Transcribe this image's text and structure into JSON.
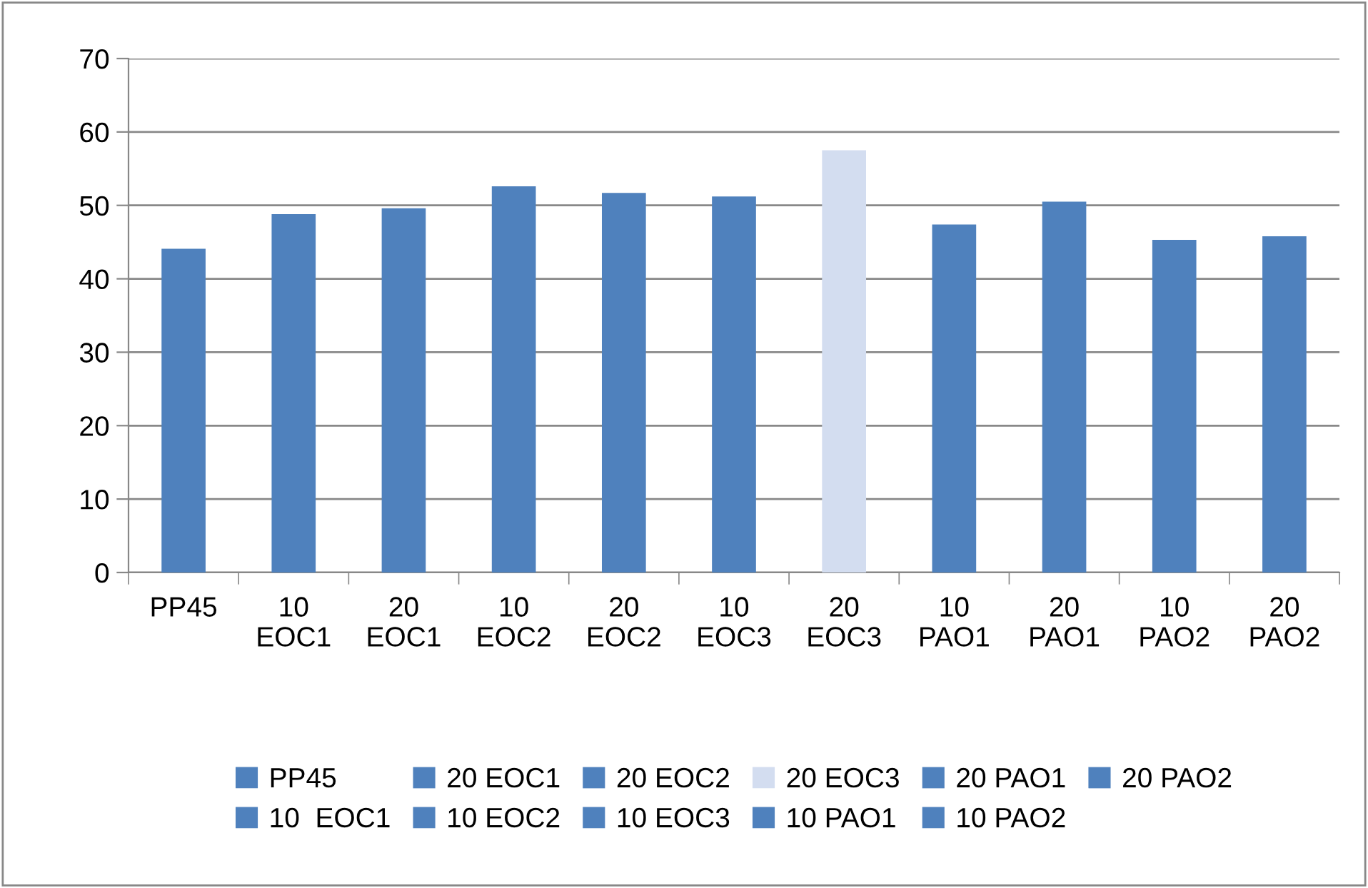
{
  "chart_data": {
    "type": "bar",
    "stacked": true,
    "categories": [
      "PP45",
      "10\nEOC1",
      "20\nEOC1",
      "10\nEOC2",
      "20\nEOC2",
      "10\nEOC3",
      "20\nEOC3",
      "10\nPAO1",
      "20\nPAO1",
      "10\nPAO2",
      "20\nPAO2"
    ],
    "series": [
      {
        "name": "PP45",
        "color": "#4f81bd",
        "values": [
          44.1,
          null,
          null,
          null,
          null,
          null,
          null,
          null,
          null,
          null,
          null
        ]
      },
      {
        "name": "10  EOC1",
        "color": "#4f81bd",
        "values": [
          null,
          48.8,
          null,
          null,
          null,
          null,
          null,
          null,
          null,
          null,
          null
        ]
      },
      {
        "name": "20 EOC1",
        "color": "#4f81bd",
        "values": [
          null,
          null,
          49.6,
          null,
          null,
          null,
          null,
          null,
          null,
          null,
          null
        ]
      },
      {
        "name": "10 EOC2",
        "color": "#4f81bd",
        "values": [
          null,
          null,
          null,
          52.6,
          null,
          null,
          null,
          null,
          null,
          null,
          null
        ]
      },
      {
        "name": "20 EOC2",
        "color": "#4f81bd",
        "values": [
          null,
          null,
          null,
          null,
          51.7,
          null,
          null,
          null,
          null,
          null,
          null
        ]
      },
      {
        "name": "10 EOC3",
        "color": "#4f81bd",
        "values": [
          null,
          null,
          null,
          null,
          null,
          51.2,
          null,
          null,
          null,
          null,
          null
        ]
      },
      {
        "name": "20 EOC3",
        "color": "#d3ddf0",
        "values": [
          null,
          null,
          null,
          null,
          null,
          null,
          57.5,
          null,
          null,
          null,
          null
        ]
      },
      {
        "name": "10 PAO1",
        "color": "#4f81bd",
        "values": [
          null,
          null,
          null,
          null,
          null,
          null,
          null,
          47.4,
          null,
          null,
          null
        ]
      },
      {
        "name": "20 PAO1",
        "color": "#4f81bd",
        "values": [
          null,
          null,
          null,
          null,
          null,
          null,
          null,
          null,
          50.5,
          null,
          null
        ]
      },
      {
        "name": "10 PAO2",
        "color": "#4f81bd",
        "values": [
          null,
          null,
          null,
          null,
          null,
          null,
          null,
          null,
          null,
          45.3,
          null
        ]
      },
      {
        "name": "20 PAO2",
        "color": "#4f81bd",
        "values": [
          null,
          null,
          null,
          null,
          null,
          null,
          null,
          null,
          null,
          null,
          45.8
        ]
      }
    ],
    "ylim": [
      0,
      70
    ],
    "yticks": [
      0,
      10,
      20,
      30,
      40,
      50,
      60,
      70
    ],
    "grid": "y",
    "legend": "bottom"
  }
}
